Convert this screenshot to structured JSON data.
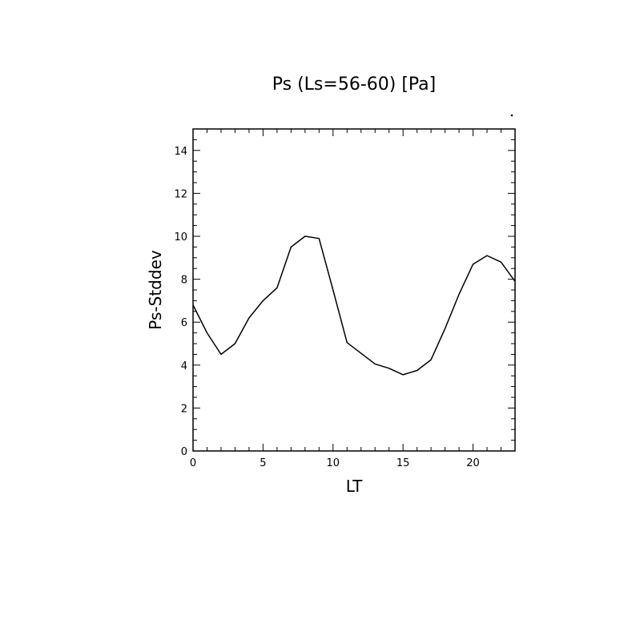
{
  "chart_data": {
    "type": "line",
    "title": "Ps (Ls=56-60) [Pa]",
    "xlabel": "LT",
    "ylabel": "Ps-Stddev",
    "xlim": [
      0,
      23
    ],
    "ylim": [
      0,
      15
    ],
    "xticks": [
      0,
      5,
      10,
      15,
      20
    ],
    "yticks": [
      0,
      2,
      4,
      6,
      8,
      10,
      12,
      14
    ],
    "grid": false,
    "series": [
      {
        "color": "#000000",
        "x": [
          0,
          1,
          2,
          3,
          4,
          5,
          6,
          7,
          8,
          9,
          10,
          11,
          12,
          13,
          14,
          15,
          16,
          17,
          18,
          19,
          20,
          21,
          22,
          23
        ],
        "values": [
          6.8,
          5.5,
          4.5,
          5.0,
          6.2,
          7.0,
          7.6,
          9.5,
          10.0,
          9.9,
          7.5,
          5.05,
          4.55,
          4.05,
          3.85,
          3.55,
          3.75,
          4.25,
          5.7,
          7.3,
          8.7,
          9.1,
          8.8,
          7.9
        ]
      }
    ]
  }
}
